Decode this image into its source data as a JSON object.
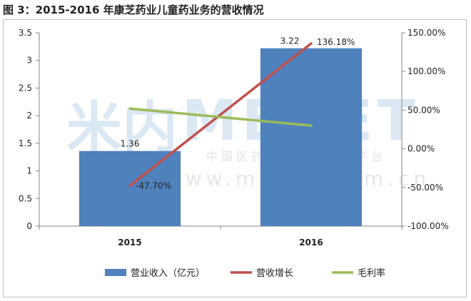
{
  "title": "图 3：2015-2016 年康芝药业儿童药业务的营收情况",
  "watermark": {
    "logo_cn": "米内",
    "logo_en": "MENET",
    "tagline": "中国医药健康信息第一平台",
    "url": "www.menet.com.cn"
  },
  "chart_data": {
    "type": "bar",
    "title": "",
    "categories": [
      "2015",
      "2016"
    ],
    "y_left": {
      "ticks": [
        "0",
        "0.5",
        "1",
        "1.5",
        "2",
        "2.5",
        "3",
        "3.5"
      ],
      "min": 0,
      "max": 3.5
    },
    "y_right": {
      "ticks": [
        "-100.00%",
        "-50.00%",
        "0.00%",
        "50.00%",
        "100.00%",
        "150.00%"
      ],
      "min": -100,
      "max": 150
    },
    "grid": false,
    "legend_position": "bottom",
    "series": [
      {
        "name": "营业收入（亿元）",
        "kind": "bar",
        "axis": "left",
        "values": [
          1.36,
          3.22
        ],
        "labels": [
          "1.36",
          "3.22"
        ],
        "color": "#4f81bd"
      },
      {
        "name": "营收增长",
        "kind": "line",
        "axis": "right",
        "values": [
          -47.7,
          136.18
        ],
        "labels": [
          "-47.70%",
          "136.18%"
        ],
        "color": "#c0504d"
      },
      {
        "name": "毛利率",
        "kind": "line",
        "axis": "right",
        "values": [
          52,
          30
        ],
        "labels": [],
        "color": "#9bbb59"
      }
    ]
  }
}
